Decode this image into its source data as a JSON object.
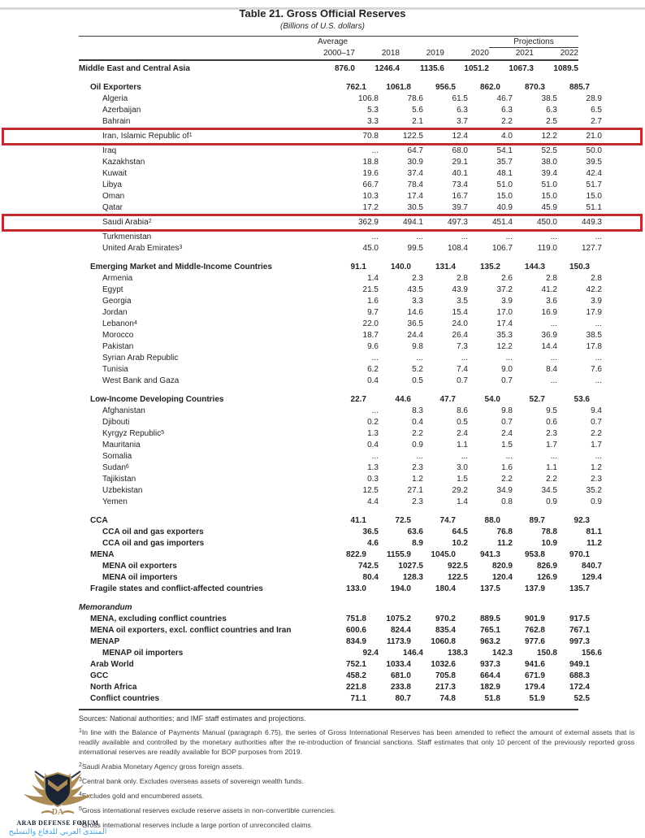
{
  "page": {
    "title": "Table 21. Gross Official Reserves",
    "subtitle": "(Billions of U.S. dollars)"
  },
  "table": {
    "header": {
      "average_label": "Average",
      "projections_label": "Projections",
      "years": [
        "2000–17",
        "2018",
        "2019",
        "2020",
        "2021",
        "2022"
      ]
    },
    "rows": [
      {
        "label": "Middle East and Central Asia",
        "level": 0,
        "bold": true,
        "values": [
          "876.0",
          "1246.4",
          "1135.6",
          "1051.2",
          "1067.3",
          "1089.5"
        ]
      },
      {
        "label": "Oil Exporters",
        "level": 1,
        "bold": true,
        "gap": true,
        "values": [
          "762.1",
          "1061.8",
          "956.5",
          "862.0",
          "870.3",
          "885.7"
        ]
      },
      {
        "label": "Algeria",
        "level": 2,
        "values": [
          "106.8",
          "78.6",
          "61.5",
          "46.7",
          "38.5",
          "28.9"
        ]
      },
      {
        "label": "Azerbaijan",
        "level": 2,
        "values": [
          "5.3",
          "5.6",
          "6.3",
          "6.3",
          "6.3",
          "6.5"
        ]
      },
      {
        "label": "Bahrain",
        "level": 2,
        "values": [
          "3.3",
          "2.1",
          "3.7",
          "2.2",
          "2.5",
          "2.7"
        ]
      },
      {
        "label": "Iran, Islamic Republic of",
        "sup": "1",
        "level": 2,
        "highlight": true,
        "values": [
          "70.8",
          "122.5",
          "12.4",
          "4.0",
          "12.2",
          "21.0"
        ]
      },
      {
        "label": "Iraq",
        "level": 2,
        "values": [
          "...",
          "64.7",
          "68.0",
          "54.1",
          "52.5",
          "50.0"
        ]
      },
      {
        "label": "Kazakhstan",
        "level": 2,
        "values": [
          "18.8",
          "30.9",
          "29.1",
          "35.7",
          "38.0",
          "39.5"
        ]
      },
      {
        "label": "Kuwait",
        "level": 2,
        "values": [
          "19.6",
          "37.4",
          "40.1",
          "48.1",
          "39.4",
          "42.4"
        ]
      },
      {
        "label": "Libya",
        "level": 2,
        "values": [
          "66.7",
          "78.4",
          "73.4",
          "51.0",
          "51.0",
          "51.7"
        ]
      },
      {
        "label": "Oman",
        "level": 2,
        "values": [
          "10.3",
          "17.4",
          "16.7",
          "15.0",
          "15.0",
          "15.0"
        ]
      },
      {
        "label": "Qatar",
        "level": 2,
        "values": [
          "17.2",
          "30.5",
          "39.7",
          "40.9",
          "45.9",
          "51.1"
        ]
      },
      {
        "label": "Saudi Arabia",
        "sup": "2",
        "level": 2,
        "highlight": true,
        "values": [
          "362.9",
          "494.1",
          "497.3",
          "451.4",
          "450.0",
          "449.3"
        ]
      },
      {
        "label": "Turkmenistan",
        "level": 2,
        "values": [
          "...",
          "...",
          "...",
          "...",
          "...",
          "..."
        ]
      },
      {
        "label": "United Arab Emirates",
        "sup": "3",
        "level": 2,
        "values": [
          "45.0",
          "99.5",
          "108.4",
          "106.7",
          "119.0",
          "127.7"
        ]
      },
      {
        "label": "Emerging Market and Middle-Income Countries",
        "level": 1,
        "bold": true,
        "gap": true,
        "values": [
          "91.1",
          "140.0",
          "131.4",
          "135.2",
          "144.3",
          "150.3"
        ]
      },
      {
        "label": "Armenia",
        "level": 2,
        "values": [
          "1.4",
          "2.3",
          "2.8",
          "2.6",
          "2.8",
          "2.8"
        ]
      },
      {
        "label": "Egypt",
        "level": 2,
        "values": [
          "21.5",
          "43.5",
          "43.9",
          "37.2",
          "41.2",
          "42.2"
        ]
      },
      {
        "label": "Georgia",
        "level": 2,
        "values": [
          "1.6",
          "3.3",
          "3.5",
          "3.9",
          "3.6",
          "3.9"
        ]
      },
      {
        "label": "Jordan",
        "level": 2,
        "values": [
          "9.7",
          "14.6",
          "15.4",
          "17.0",
          "16.9",
          "17.9"
        ]
      },
      {
        "label": "Lebanon",
        "sup": "4",
        "level": 2,
        "values": [
          "22.0",
          "36.5",
          "24.0",
          "17.4",
          "...",
          "..."
        ]
      },
      {
        "label": "Morocco",
        "level": 2,
        "values": [
          "18.7",
          "24.4",
          "26.4",
          "35.3",
          "36.9",
          "38.5"
        ]
      },
      {
        "label": "Pakistan",
        "level": 2,
        "values": [
          "9.6",
          "9.8",
          "7.3",
          "12.2",
          "14.4",
          "17.8"
        ]
      },
      {
        "label": "Syrian Arab Republic",
        "level": 2,
        "values": [
          "...",
          "...",
          "...",
          "...",
          "...",
          "..."
        ]
      },
      {
        "label": "Tunisia",
        "level": 2,
        "values": [
          "6.2",
          "5.2",
          "7.4",
          "9.0",
          "8.4",
          "7.6"
        ]
      },
      {
        "label": "West Bank and Gaza",
        "level": 2,
        "values": [
          "0.4",
          "0.5",
          "0.7",
          "0.7",
          "...",
          "..."
        ]
      },
      {
        "label": "Low-Income Developing Countries",
        "level": 1,
        "bold": true,
        "gap": true,
        "values": [
          "22.7",
          "44.6",
          "47.7",
          "54.0",
          "52.7",
          "53.6"
        ]
      },
      {
        "label": "Afghanistan",
        "level": 2,
        "values": [
          "...",
          "8.3",
          "8.6",
          "9.8",
          "9.5",
          "9.4"
        ]
      },
      {
        "label": "Djibouti",
        "level": 2,
        "values": [
          "0.2",
          "0.4",
          "0.5",
          "0.7",
          "0.6",
          "0.7"
        ]
      },
      {
        "label": "Kyrgyz Republic",
        "sup": "5",
        "level": 2,
        "values": [
          "1.3",
          "2.2",
          "2.4",
          "2.4",
          "2.3",
          "2.2"
        ]
      },
      {
        "label": "Mauritania",
        "level": 2,
        "values": [
          "0.4",
          "0.9",
          "1.1",
          "1.5",
          "1.7",
          "1.7"
        ]
      },
      {
        "label": "Somalia",
        "level": 2,
        "values": [
          "...",
          "...",
          "...",
          "...",
          "...",
          "..."
        ]
      },
      {
        "label": "Sudan",
        "sup": "6",
        "level": 2,
        "values": [
          "1.3",
          "2.3",
          "3.0",
          "1.6",
          "1.1",
          "1.2"
        ]
      },
      {
        "label": "Tajikistan",
        "level": 2,
        "values": [
          "0.3",
          "1.2",
          "1.5",
          "2.2",
          "2.2",
          "2.3"
        ]
      },
      {
        "label": "Uzbekistan",
        "level": 2,
        "values": [
          "12.5",
          "27.1",
          "29.2",
          "34.9",
          "34.5",
          "35.2"
        ]
      },
      {
        "label": "Yemen",
        "level": 2,
        "values": [
          "4.4",
          "2.3",
          "1.4",
          "0.8",
          "0.9",
          "0.9"
        ]
      },
      {
        "label": "CCA",
        "level": 1,
        "bold": true,
        "gap": true,
        "values": [
          "41.1",
          "72.5",
          "74.7",
          "88.0",
          "89.7",
          "92.3"
        ]
      },
      {
        "label": "CCA oil and gas exporters",
        "level": 2,
        "bold": true,
        "values": [
          "36.5",
          "63.6",
          "64.5",
          "76.8",
          "78.8",
          "81.1"
        ]
      },
      {
        "label": "CCA oil and gas importers",
        "level": 2,
        "bold": true,
        "values": [
          "4.6",
          "8.9",
          "10.2",
          "11.2",
          "10.9",
          "11.2"
        ]
      },
      {
        "label": "MENA",
        "level": 1,
        "bold": true,
        "values": [
          "822.9",
          "1155.9",
          "1045.0",
          "941.3",
          "953.8",
          "970.1"
        ]
      },
      {
        "label": "MENA oil exporters",
        "level": 2,
        "bold": true,
        "values": [
          "742.5",
          "1027.5",
          "922.5",
          "820.9",
          "826.9",
          "840.7"
        ]
      },
      {
        "label": "MENA oil importers",
        "level": 2,
        "bold": true,
        "values": [
          "80.4",
          "128.3",
          "122.5",
          "120.4",
          "126.9",
          "129.4"
        ]
      },
      {
        "label": "Fragile states and conflict-affected countries",
        "level": 1,
        "bold": true,
        "values": [
          "133.0",
          "194.0",
          "180.4",
          "137.5",
          "137.9",
          "135.7"
        ]
      },
      {
        "label": "Memorandum",
        "level": 0,
        "bold": true,
        "italic": true,
        "gap": true,
        "values": null
      },
      {
        "label": "MENA, excluding conflict countries",
        "level": 1,
        "bold": true,
        "values": [
          "751.8",
          "1075.2",
          "970.2",
          "889.5",
          "901.9",
          "917.5"
        ]
      },
      {
        "label": "MENA oil exporters, excl. conflict countries and Iran",
        "level": 1,
        "bold": true,
        "values": [
          "600.6",
          "824.4",
          "835.4",
          "765.1",
          "762.8",
          "767.1"
        ]
      },
      {
        "label": "MENAP",
        "level": 1,
        "bold": true,
        "values": [
          "834.9",
          "1173.9",
          "1060.8",
          "963.2",
          "977.6",
          "997.3"
        ]
      },
      {
        "label": "MENAP oil importers",
        "level": 2,
        "bold": true,
        "values": [
          "92.4",
          "146.4",
          "138.3",
          "142.3",
          "150.8",
          "156.6"
        ]
      },
      {
        "label": "Arab World",
        "level": 1,
        "bold": true,
        "values": [
          "752.1",
          "1033.4",
          "1032.6",
          "937.3",
          "941.6",
          "949.1"
        ]
      },
      {
        "label": "GCC",
        "level": 1,
        "bold": true,
        "values": [
          "458.2",
          "681.0",
          "705.8",
          "664.4",
          "671.9",
          "688.3"
        ]
      },
      {
        "label": "North Africa",
        "level": 1,
        "bold": true,
        "values": [
          "221.8",
          "233.8",
          "217.3",
          "182.9",
          "179.4",
          "172.4"
        ]
      },
      {
        "label": "Conflict countries",
        "level": 1,
        "bold": true,
        "values": [
          "71.1",
          "80.7",
          "74.8",
          "51.8",
          "51.9",
          "52.5"
        ]
      }
    ]
  },
  "notes": {
    "sources": "Sources: National authorities; and IMF staff estimates and projections.",
    "footnotes": [
      {
        "sup": "1",
        "text": "In line with the Balance of Payments Manual (paragraph 6.75), the series of Gross International Reserves has been amended to reflect the amount of external assets that is readily available and controlled by the monetary authorities after the re-introduction of financial sanctions. Staff estimates that only 10 percent of the previously reported gross international reserves are readily available for BOP purposes from 2019."
      },
      {
        "sup": "2",
        "text": "Saudi Arabia Monetary Agency gross foreign assets."
      },
      {
        "sup": "3",
        "text": "Central bank only. Excludes overseas assets of sovereign wealth funds."
      },
      {
        "sup": "4",
        "text": "Excludes gold and encumbered assets."
      },
      {
        "sup": "5",
        "text": "Gross international reserves exclude reserve assets in non-convertible currencies."
      },
      {
        "sup": "6",
        "text": "Gross international reserves include a large portion of unreconciled claims."
      }
    ]
  },
  "annotations": {
    "highlight_color": "#bf2a2e",
    "highlighted_rows": [
      "Iran, Islamic Republic of",
      "Saudi Arabia"
    ]
  },
  "watermark": {
    "org": "ARAB DEFENSE FORUM",
    "monogram": "DA",
    "arabic": "المنتدى العربي للدفاع والتسليح",
    "gold": "#ab8b55",
    "navy": "#1b2435",
    "blue": "#4aa3dc"
  }
}
